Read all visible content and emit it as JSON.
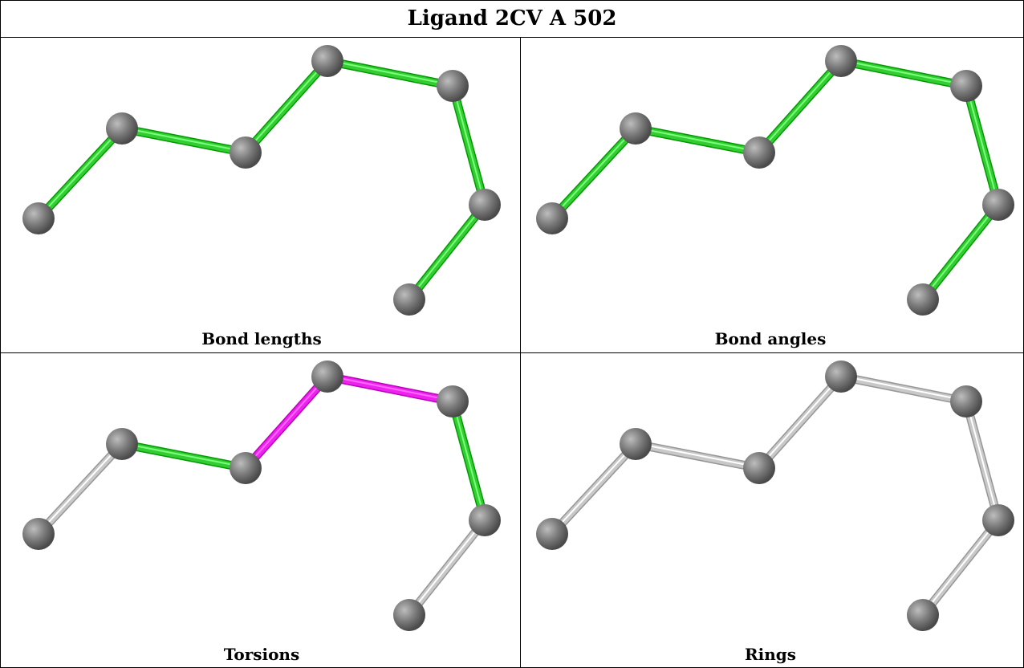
{
  "title": "Ligand 2CV A 502",
  "colors": {
    "ok_bond": "#33cc33",
    "outlier_bond": "#ee22ee",
    "neutral_bond": "#c8c8c8",
    "atom": "#7a7a7a"
  },
  "panels": [
    {
      "id": "bond-lengths",
      "caption": "Bond lengths",
      "bond_colors": [
        "ok",
        "ok",
        "ok",
        "ok",
        "ok",
        "ok",
        "ok"
      ]
    },
    {
      "id": "bond-angles",
      "caption": "Bond angles",
      "bond_colors": [
        "ok",
        "ok",
        "ok",
        "ok",
        "ok",
        "ok",
        "ok"
      ]
    },
    {
      "id": "torsions",
      "caption": "Torsions",
      "bond_colors": [
        "neutral",
        "ok",
        "outlier",
        "outlier",
        "ok",
        "neutral",
        "ok"
      ]
    },
    {
      "id": "rings",
      "caption": "Rings",
      "bond_colors": [
        "neutral",
        "neutral",
        "neutral",
        "neutral",
        "neutral",
        "neutral",
        "neutral"
      ]
    }
  ]
}
